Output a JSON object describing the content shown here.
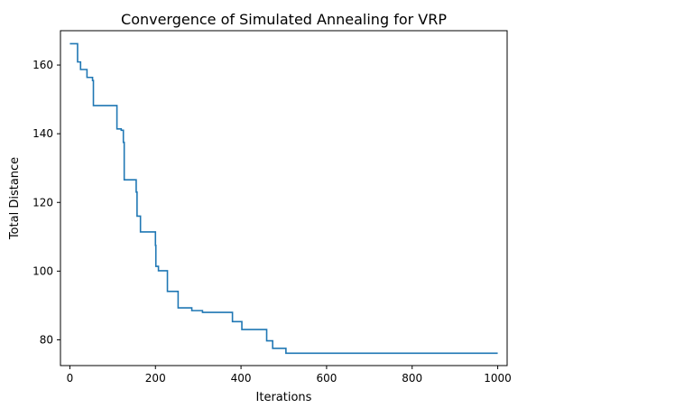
{
  "chart_data": {
    "type": "line",
    "title": "Convergence of Simulated Annealing for VRP",
    "xlabel": "Iterations",
    "ylabel": "Total Distance",
    "xlim": [
      -22,
      1022
    ],
    "ylim": [
      72.5,
      170
    ],
    "xticks": [
      0,
      200,
      400,
      600,
      800,
      1000
    ],
    "yticks": [
      80,
      100,
      120,
      140,
      160
    ],
    "xtick_labels": [
      "0",
      "200",
      "400",
      "600",
      "800",
      "1000"
    ],
    "ytick_labels": [
      "80",
      "100",
      "120",
      "140",
      "160"
    ],
    "grid": false,
    "line_color": "#1f77b4",
    "series": [
      {
        "step": "post",
        "x": [
          0,
          18,
          25,
          40,
          53,
          55,
          57,
          110,
          120,
          125,
          127,
          128,
          155,
          157,
          159,
          165,
          172,
          200,
          201,
          207,
          220,
          228,
          250,
          253,
          285,
          310,
          380,
          395,
          402,
          460,
          474,
          490,
          505,
          1000
        ],
        "y": [
          166.2,
          160.9,
          158.7,
          156.4,
          155.5,
          148.2,
          148.2,
          141.4,
          141.0,
          137.5,
          126.6,
          126.6,
          123.0,
          116.0,
          116.0,
          111.4,
          111.4,
          107.5,
          101.4,
          100.1,
          100.1,
          94.1,
          94.1,
          89.3,
          88.5,
          88.0,
          85.3,
          85.3,
          83.0,
          79.7,
          77.5,
          77.5,
          76.1,
          76.1
        ]
      }
    ]
  }
}
